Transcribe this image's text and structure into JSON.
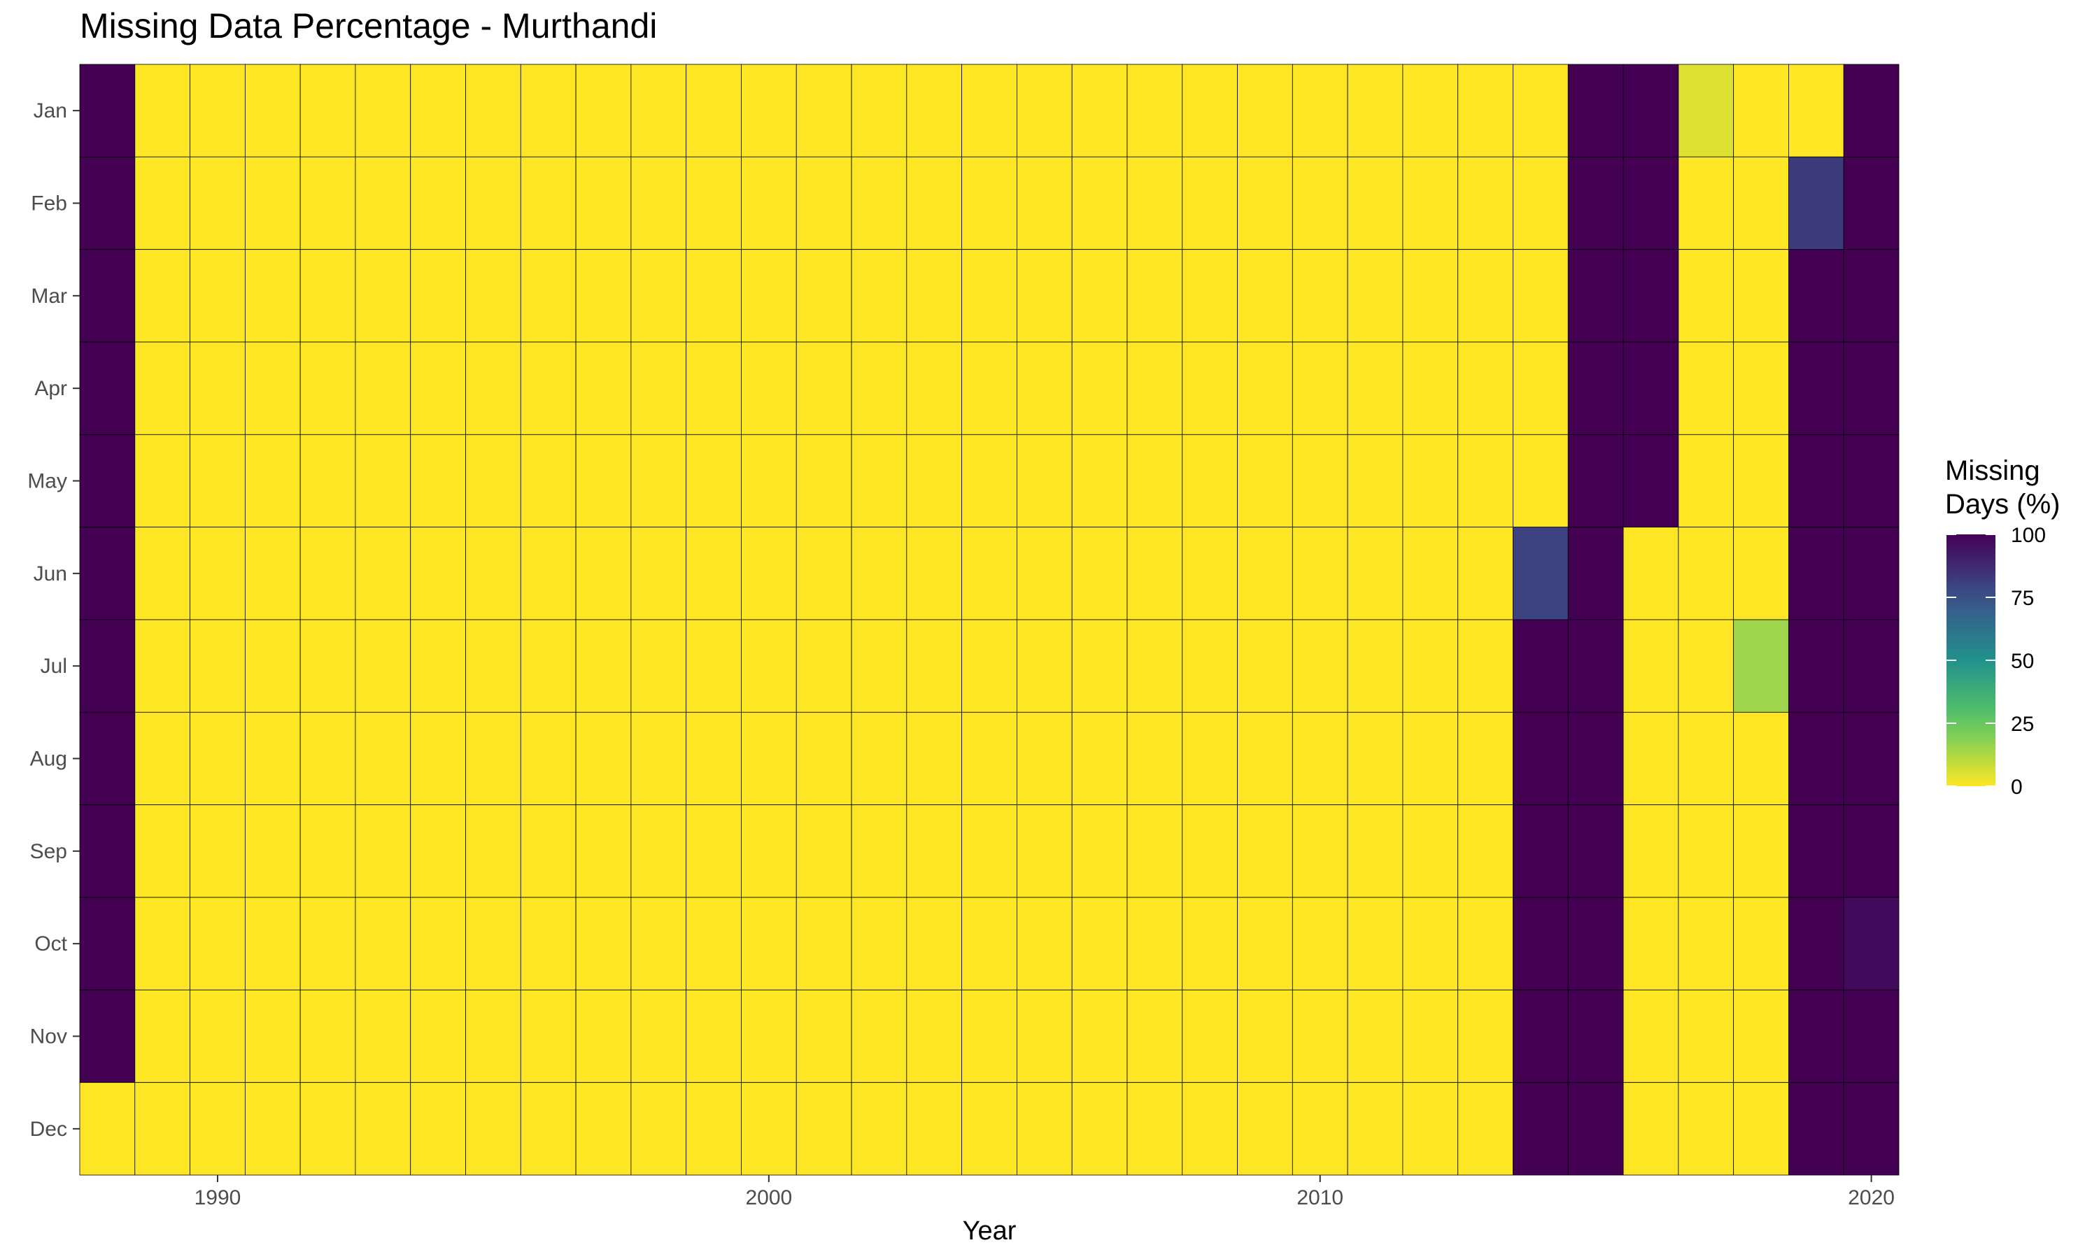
{
  "title": "Missing Data Percentage - Murthandi",
  "chart_data": {
    "type": "heatmap",
    "title": "Missing Data Percentage - Murthandi",
    "xlabel": "Year",
    "ylabel": "",
    "x": [
      1988,
      1989,
      1990,
      1991,
      1992,
      1993,
      1994,
      1995,
      1996,
      1997,
      1998,
      1999,
      2000,
      2001,
      2002,
      2003,
      2004,
      2005,
      2006,
      2007,
      2008,
      2009,
      2010,
      2011,
      2012,
      2013,
      2014,
      2015,
      2016,
      2017,
      2018,
      2019,
      2020
    ],
    "xticks": [
      "1990",
      "2000",
      "2010",
      "2020"
    ],
    "months": [
      "Jan",
      "Feb",
      "Mar",
      "Apr",
      "May",
      "Jun",
      "Jul",
      "Aug",
      "Sep",
      "Oct",
      "Nov",
      "Dec"
    ],
    "values": {
      "Jan": [
        100,
        0,
        0,
        0,
        0,
        0,
        0,
        0,
        0,
        0,
        0,
        0,
        0,
        0,
        0,
        0,
        0,
        0,
        0,
        0,
        0,
        0,
        0,
        0,
        0,
        0,
        0,
        100,
        100,
        5,
        0,
        0,
        100
      ],
      "Feb": [
        100,
        0,
        0,
        0,
        0,
        0,
        0,
        0,
        0,
        0,
        0,
        0,
        0,
        0,
        0,
        0,
        0,
        0,
        0,
        0,
        0,
        0,
        0,
        0,
        0,
        0,
        0,
        100,
        100,
        0,
        0,
        82,
        100
      ],
      "Mar": [
        100,
        0,
        0,
        0,
        0,
        0,
        0,
        0,
        0,
        0,
        0,
        0,
        0,
        0,
        0,
        0,
        0,
        0,
        0,
        0,
        0,
        0,
        0,
        0,
        0,
        0,
        0,
        100,
        100,
        0,
        0,
        100,
        100
      ],
      "Apr": [
        100,
        0,
        0,
        0,
        0,
        0,
        0,
        0,
        0,
        0,
        0,
        0,
        0,
        0,
        0,
        0,
        0,
        0,
        0,
        0,
        0,
        0,
        0,
        0,
        0,
        0,
        0,
        100,
        100,
        0,
        0,
        100,
        100
      ],
      "May": [
        100,
        0,
        0,
        0,
        0,
        0,
        0,
        0,
        0,
        0,
        0,
        0,
        0,
        0,
        0,
        0,
        0,
        0,
        0,
        0,
        0,
        0,
        0,
        0,
        0,
        0,
        0,
        100,
        100,
        0,
        0,
        100,
        100
      ],
      "Jun": [
        100,
        0,
        0,
        0,
        0,
        0,
        0,
        0,
        0,
        0,
        0,
        0,
        0,
        0,
        0,
        0,
        0,
        0,
        0,
        0,
        0,
        0,
        0,
        0,
        0,
        0,
        80,
        100,
        0,
        0,
        0,
        100,
        100
      ],
      "Jul": [
        100,
        0,
        0,
        0,
        0,
        0,
        0,
        0,
        0,
        0,
        0,
        0,
        0,
        0,
        0,
        0,
        0,
        0,
        0,
        0,
        0,
        0,
        0,
        0,
        0,
        0,
        100,
        100,
        0,
        0,
        15,
        100,
        100
      ],
      "Aug": [
        100,
        0,
        0,
        0,
        0,
        0,
        0,
        0,
        0,
        0,
        0,
        0,
        0,
        0,
        0,
        0,
        0,
        0,
        0,
        0,
        0,
        0,
        0,
        0,
        0,
        0,
        100,
        100,
        0,
        0,
        0,
        100,
        100
      ],
      "Sep": [
        100,
        0,
        0,
        0,
        0,
        0,
        0,
        0,
        0,
        0,
        0,
        0,
        0,
        0,
        0,
        0,
        0,
        0,
        0,
        0,
        0,
        0,
        0,
        0,
        0,
        0,
        100,
        100,
        0,
        0,
        0,
        100,
        100
      ],
      "Oct": [
        100,
        0,
        0,
        0,
        0,
        0,
        0,
        0,
        0,
        0,
        0,
        0,
        0,
        0,
        0,
        0,
        0,
        0,
        0,
        0,
        0,
        0,
        0,
        0,
        0,
        0,
        100,
        100,
        0,
        0,
        0,
        100,
        97
      ],
      "Nov": [
        100,
        0,
        0,
        0,
        0,
        0,
        0,
        0,
        0,
        0,
        0,
        0,
        0,
        0,
        0,
        0,
        0,
        0,
        0,
        0,
        0,
        0,
        0,
        0,
        0,
        0,
        100,
        100,
        0,
        0,
        0,
        100,
        100
      ],
      "Dec": [
        0,
        0,
        0,
        0,
        0,
        0,
        0,
        0,
        0,
        0,
        0,
        0,
        0,
        0,
        0,
        0,
        0,
        0,
        0,
        0,
        0,
        0,
        0,
        0,
        0,
        0,
        100,
        100,
        0,
        0,
        0,
        100,
        100
      ]
    },
    "zlim": [
      0,
      100
    ],
    "grid": false,
    "legend": {
      "title": "Missing\nDays (%)",
      "ticks": [
        0,
        25,
        50,
        75,
        100
      ],
      "placement": "right"
    },
    "colormap": "viridis-reversed",
    "colors": {
      "low": "#FDE725",
      "high": "#440154",
      "cell_border": "#000000"
    }
  }
}
